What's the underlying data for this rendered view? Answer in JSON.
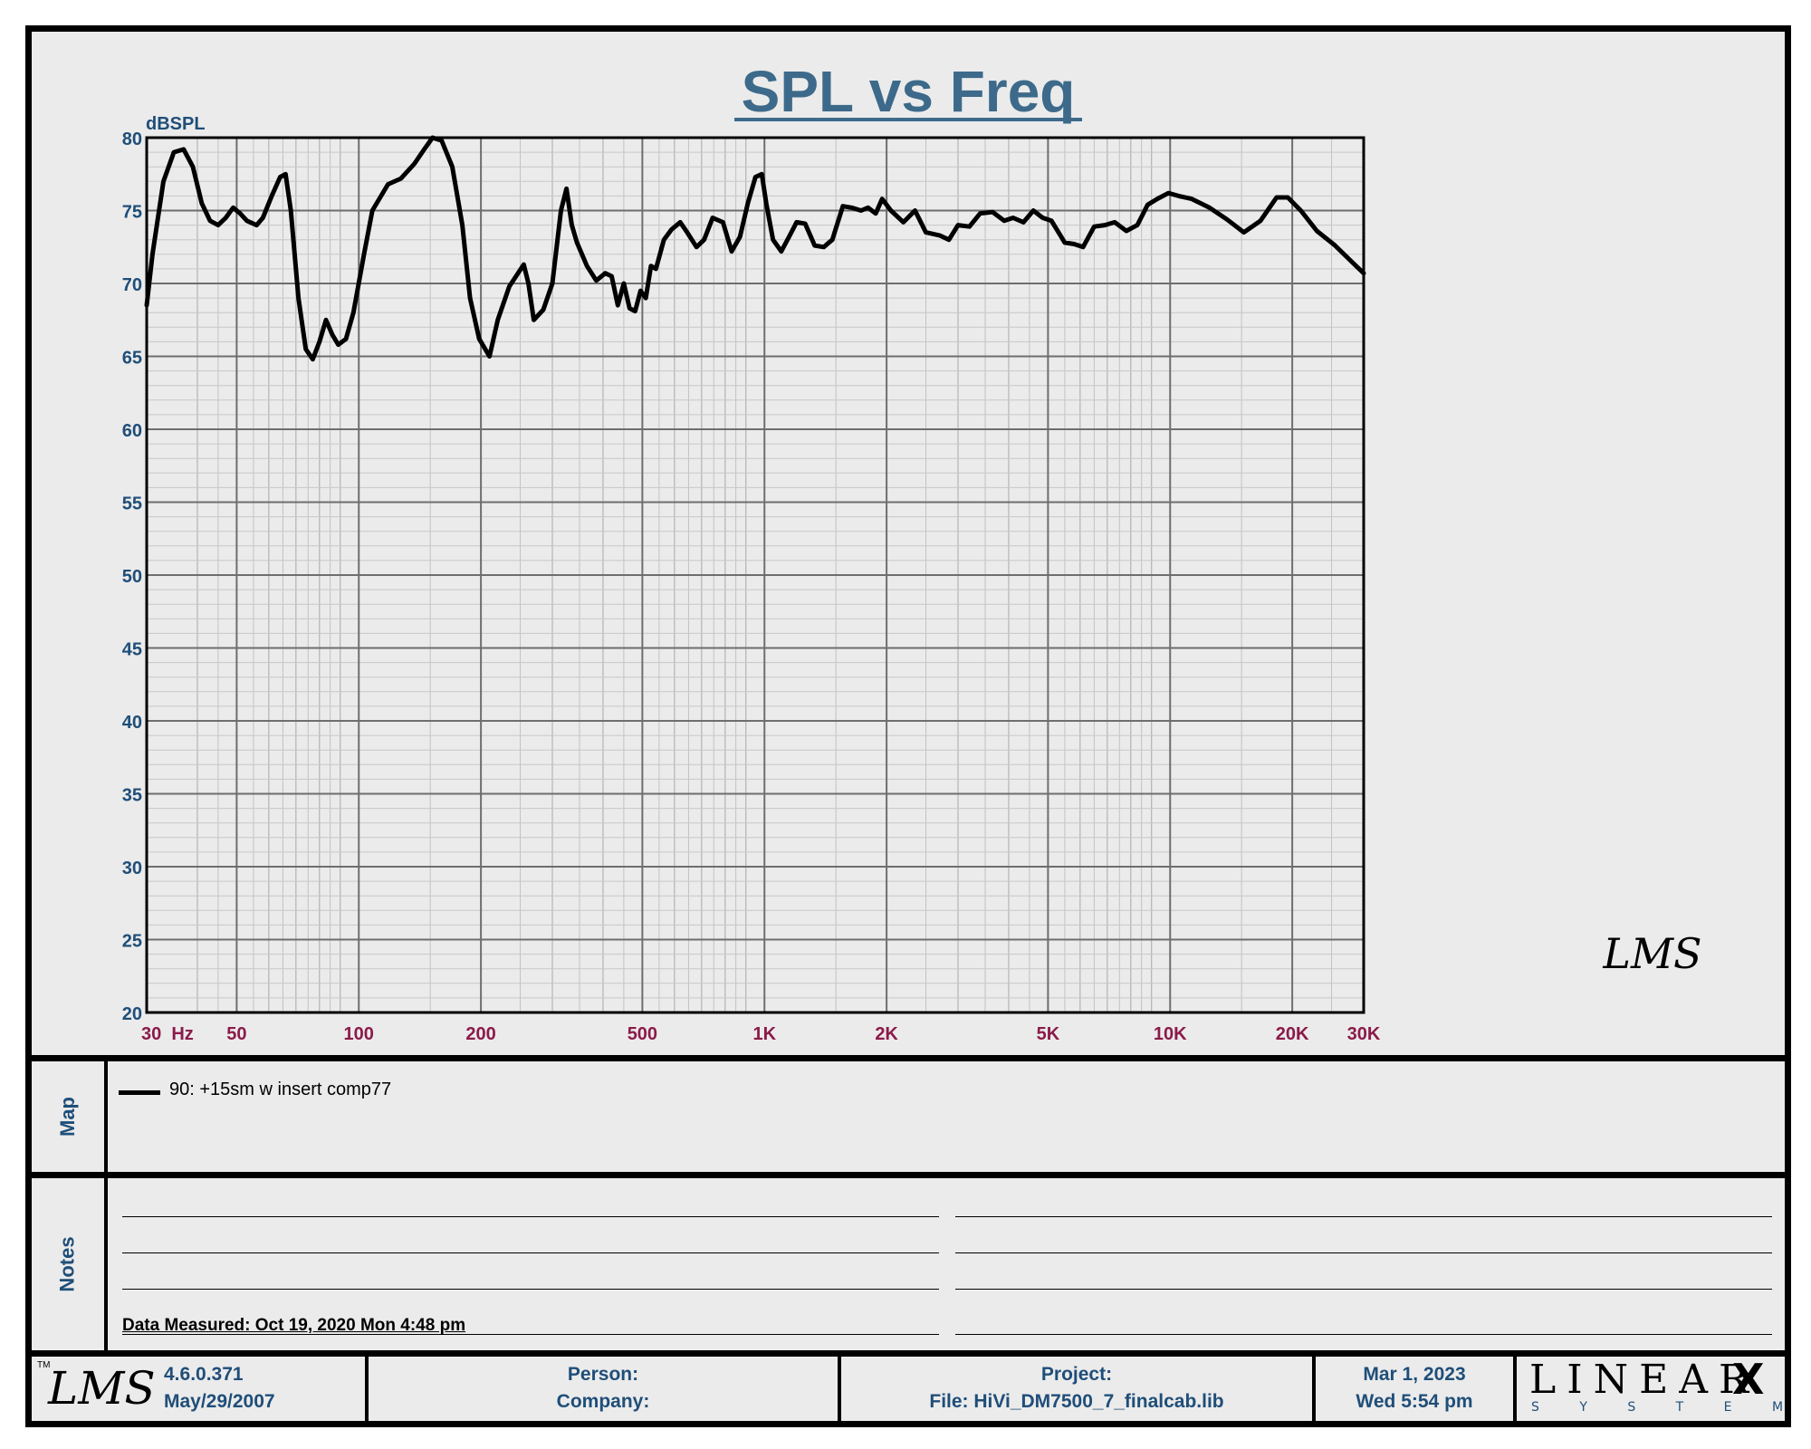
{
  "chart_data": {
    "type": "line",
    "title": "SPL vs Freq",
    "ylabel": "dBSPL",
    "xscale": "log",
    "xlim": [
      30,
      30000
    ],
    "ylim": [
      20,
      80
    ],
    "y_ticks": [
      "80",
      "75",
      "70",
      "65",
      "60",
      "55",
      "50",
      "45",
      "40",
      "35",
      "30",
      "25",
      "20"
    ],
    "x_ticks": [
      {
        "value": 30,
        "label": "30  Hz"
      },
      {
        "value": 50,
        "label": "50"
      },
      {
        "value": 100,
        "label": "100"
      },
      {
        "value": 200,
        "label": "200"
      },
      {
        "value": 500,
        "label": "500"
      },
      {
        "value": 1000,
        "label": "1K"
      },
      {
        "value": 2000,
        "label": "2K"
      },
      {
        "value": 5000,
        "label": "5K"
      },
      {
        "value": 10000,
        "label": "10K"
      },
      {
        "value": 20000,
        "label": "20K"
      },
      {
        "value": 30000,
        "label": "30K"
      }
    ],
    "grid": true,
    "watermark": "LMS",
    "series": [
      {
        "name": "90: +15sm w insert comp77",
        "color": "#000000",
        "points": [
          [
            30,
            68.5
          ],
          [
            31,
            72
          ],
          [
            33,
            77
          ],
          [
            35,
            79
          ],
          [
            37,
            79.2
          ],
          [
            39,
            78
          ],
          [
            41,
            75.5
          ],
          [
            43,
            74.3
          ],
          [
            45,
            74
          ],
          [
            47,
            74.5
          ],
          [
            49,
            75.2
          ],
          [
            51,
            74.8
          ],
          [
            53,
            74.3
          ],
          [
            56,
            74
          ],
          [
            58,
            74.5
          ],
          [
            61,
            76
          ],
          [
            64,
            77.3
          ],
          [
            66,
            77.5
          ],
          [
            68,
            75
          ],
          [
            71,
            69
          ],
          [
            74,
            65.5
          ],
          [
            77,
            64.8
          ],
          [
            80,
            66
          ],
          [
            83,
            67.5
          ],
          [
            86,
            66.5
          ],
          [
            89,
            65.8
          ],
          [
            93,
            66.2
          ],
          [
            97,
            68
          ],
          [
            103,
            72
          ],
          [
            108,
            75
          ],
          [
            118,
            76.8
          ],
          [
            127,
            77.2
          ],
          [
            137,
            78.2
          ],
          [
            145,
            79.2
          ],
          [
            152,
            80
          ],
          [
            160,
            79.8
          ],
          [
            170,
            78
          ],
          [
            180,
            74
          ],
          [
            188,
            69
          ],
          [
            198,
            66.2
          ],
          [
            210,
            65
          ],
          [
            220,
            67.5
          ],
          [
            235,
            69.8
          ],
          [
            255,
            71.3
          ],
          [
            262,
            70
          ],
          [
            270,
            67.5
          ],
          [
            285,
            68.2
          ],
          [
            300,
            70
          ],
          [
            315,
            75
          ],
          [
            325,
            76.5
          ],
          [
            335,
            74
          ],
          [
            345,
            72.8
          ],
          [
            365,
            71.2
          ],
          [
            385,
            70.2
          ],
          [
            405,
            70.7
          ],
          [
            420,
            70.5
          ],
          [
            435,
            68.5
          ],
          [
            450,
            70
          ],
          [
            465,
            68.3
          ],
          [
            480,
            68.1
          ],
          [
            495,
            69.5
          ],
          [
            510,
            69
          ],
          [
            525,
            71.2
          ],
          [
            540,
            71
          ],
          [
            565,
            73
          ],
          [
            590,
            73.7
          ],
          [
            620,
            74.2
          ],
          [
            645,
            73.5
          ],
          [
            680,
            72.5
          ],
          [
            710,
            73
          ],
          [
            745,
            74.5
          ],
          [
            790,
            74.2
          ],
          [
            830,
            72.2
          ],
          [
            870,
            73.2
          ],
          [
            910,
            75.5
          ],
          [
            950,
            77.3
          ],
          [
            985,
            77.5
          ],
          [
            1010,
            75.5
          ],
          [
            1050,
            73
          ],
          [
            1100,
            72.2
          ],
          [
            1150,
            73.2
          ],
          [
            1200,
            74.2
          ],
          [
            1260,
            74.1
          ],
          [
            1330,
            72.6
          ],
          [
            1400,
            72.5
          ],
          [
            1470,
            73
          ],
          [
            1560,
            75.3
          ],
          [
            1640,
            75.2
          ],
          [
            1730,
            75
          ],
          [
            1800,
            75.2
          ],
          [
            1880,
            74.8
          ],
          [
            1950,
            75.8
          ],
          [
            2050,
            75
          ],
          [
            2200,
            74.2
          ],
          [
            2350,
            75
          ],
          [
            2500,
            73.5
          ],
          [
            2700,
            73.3
          ],
          [
            2850,
            73
          ],
          [
            3000,
            74
          ],
          [
            3200,
            73.9
          ],
          [
            3400,
            74.8
          ],
          [
            3650,
            74.9
          ],
          [
            3900,
            74.3
          ],
          [
            4100,
            74.5
          ],
          [
            4350,
            74.2
          ],
          [
            4600,
            75
          ],
          [
            4850,
            74.5
          ],
          [
            5100,
            74.3
          ],
          [
            5500,
            72.8
          ],
          [
            5800,
            72.7
          ],
          [
            6100,
            72.5
          ],
          [
            6500,
            73.9
          ],
          [
            6900,
            74
          ],
          [
            7300,
            74.2
          ],
          [
            7800,
            73.6
          ],
          [
            8300,
            74
          ],
          [
            8800,
            75.4
          ],
          [
            9300,
            75.8
          ],
          [
            9900,
            76.2
          ],
          [
            10500,
            76
          ],
          [
            11300,
            75.8
          ],
          [
            12500,
            75.2
          ],
          [
            13800,
            74.4
          ],
          [
            15200,
            73.5
          ],
          [
            16700,
            74.3
          ],
          [
            18300,
            75.9
          ],
          [
            19500,
            75.9
          ],
          [
            21000,
            75
          ],
          [
            23000,
            73.6
          ],
          [
            25500,
            72.6
          ],
          [
            28000,
            71.5
          ],
          [
            30000,
            70.7
          ]
        ]
      }
    ]
  },
  "map": {
    "label": "Map",
    "legend": [
      {
        "text": "90: +15sm w insert comp77",
        "color": "#000000"
      }
    ]
  },
  "notes": {
    "label": "Notes",
    "data_measured": "Data Measured: Oct 19, 2020  Mon  4:48 pm"
  },
  "footer": {
    "logo": "LMS",
    "version": "4.6.0.371",
    "build_date": "May/29/2007",
    "person_label": "Person:",
    "company_label": "Company:",
    "project_label": "Project:",
    "file_label": "File: HiVi_DM7500_7_finalcab.lib",
    "date": "Mar  1, 2023",
    "time": "Wed  5:54 pm",
    "brand": "LINEAR",
    "brand_x": "X",
    "brand_sub": "S Y S T E M S",
    "tm": "TM"
  },
  "colors": {
    "title": "#3d6a8a",
    "y_tick": "#1f4e79",
    "x_tick": "#8b1a4a",
    "grid": "#8a8a8a",
    "panel": "#ebebeb"
  }
}
